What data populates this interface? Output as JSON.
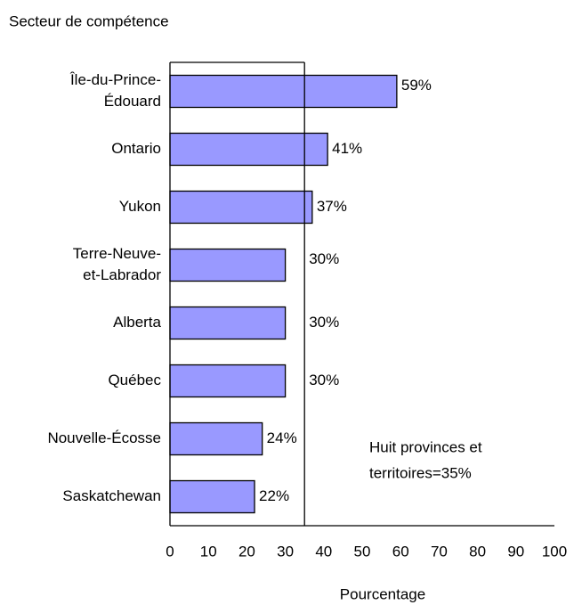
{
  "chart_data": {
    "type": "barh",
    "title": "Secteur de compétence",
    "xlabel": "Pourcentage",
    "categories": [
      [
        "Île-du-Prince-",
        "Édouard"
      ],
      [
        "Ontario"
      ],
      [
        "Yukon"
      ],
      [
        "Terre-Neuve-",
        "et-Labrador"
      ],
      [
        "Alberta"
      ],
      [
        "Québec"
      ],
      [
        "Nouvelle-Écosse"
      ],
      [
        "Saskatchewan"
      ]
    ],
    "values": [
      59,
      41,
      37,
      30,
      30,
      30,
      24,
      22
    ],
    "value_labels": [
      "59%",
      "41%",
      "37%",
      "30%",
      "30%",
      "30%",
      "24%",
      "22%"
    ],
    "color": "#9999ff",
    "xlim": [
      0,
      100
    ],
    "xticks": [
      0,
      10,
      20,
      30,
      40,
      50,
      60,
      70,
      80,
      90,
      100
    ],
    "reference_line": 35,
    "annotation": [
      "Huit provinces et",
      "territoires=35%"
    ]
  }
}
